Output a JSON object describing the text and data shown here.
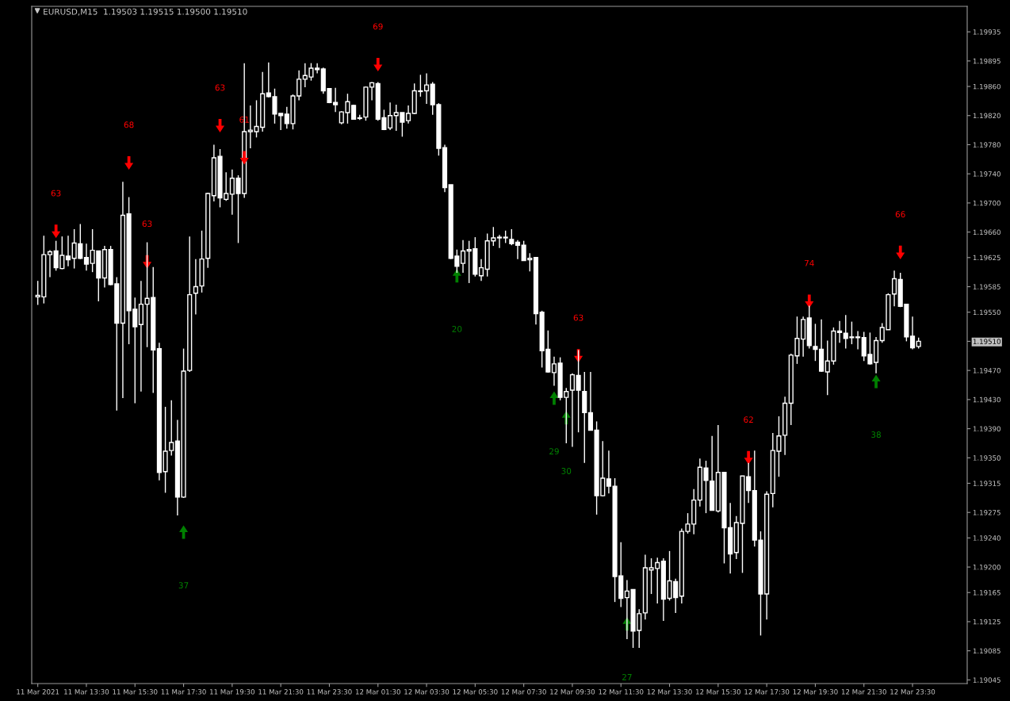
{
  "chart_data": {
    "type": "candlestick",
    "title": "EURUSD,M15  1.19503 1.19515 1.19500 1.19510",
    "x": [
      "2021-03-11T11:30",
      "2021-03-11T11:45",
      "2021-03-11T12:00",
      "2021-03-11T12:15",
      "2021-03-11T12:30",
      "2021-03-11T12:45",
      "2021-03-11T13:00",
      "2021-03-11T13:15",
      "2021-03-11T13:30",
      "2021-03-11T13:45",
      "2021-03-11T14:00",
      "2021-03-11T14:15",
      "2021-03-11T14:30",
      "2021-03-11T14:45",
      "2021-03-11T15:00",
      "2021-03-11T15:15",
      "2021-03-11T15:30",
      "2021-03-11T15:45",
      "2021-03-11T16:00",
      "2021-03-11T16:15",
      "2021-03-11T16:30",
      "2021-03-11T16:45",
      "2021-03-11T17:00",
      "2021-03-11T17:15",
      "2021-03-11T17:30",
      "2021-03-11T17:45",
      "2021-03-11T18:00",
      "2021-03-11T18:15",
      "2021-03-11T18:30",
      "2021-03-11T18:45",
      "2021-03-11T19:00",
      "2021-03-11T19:15",
      "2021-03-11T19:30",
      "2021-03-11T19:45",
      "2021-03-11T20:00",
      "2021-03-11T20:15",
      "2021-03-11T20:30",
      "2021-03-11T20:45",
      "2021-03-11T21:00",
      "2021-03-11T21:15",
      "2021-03-11T21:30",
      "2021-03-11T21:45",
      "2021-03-11T22:00",
      "2021-03-11T22:15",
      "2021-03-11T22:30",
      "2021-03-11T22:45",
      "2021-03-11T23:00",
      "2021-03-11T23:15",
      "2021-03-11T23:30",
      "2021-03-11T23:45",
      "2021-03-12T00:00",
      "2021-03-12T00:15",
      "2021-03-12T00:30",
      "2021-03-12T00:45",
      "2021-03-12T01:00",
      "2021-03-12T01:15",
      "2021-03-12T01:30",
      "2021-03-12T01:45",
      "2021-03-12T02:00",
      "2021-03-12T02:15",
      "2021-03-12T02:30",
      "2021-03-12T02:45",
      "2021-03-12T03:00",
      "2021-03-12T03:15",
      "2021-03-12T03:30",
      "2021-03-12T03:45",
      "2021-03-12T04:00",
      "2021-03-12T04:15",
      "2021-03-12T04:30",
      "2021-03-12T04:45",
      "2021-03-12T05:00",
      "2021-03-12T05:15",
      "2021-03-12T05:30",
      "2021-03-12T05:45",
      "2021-03-12T06:00",
      "2021-03-12T06:15",
      "2021-03-12T06:30",
      "2021-03-12T06:45",
      "2021-03-12T07:00",
      "2021-03-12T07:15",
      "2021-03-12T07:30",
      "2021-03-12T07:45",
      "2021-03-12T08:00",
      "2021-03-12T08:15",
      "2021-03-12T08:30",
      "2021-03-12T08:45",
      "2021-03-12T09:00",
      "2021-03-12T09:15",
      "2021-03-12T09:30",
      "2021-03-12T09:45",
      "2021-03-12T10:00",
      "2021-03-12T10:15",
      "2021-03-12T10:30",
      "2021-03-12T10:45",
      "2021-03-12T11:00",
      "2021-03-12T11:15",
      "2021-03-12T11:30",
      "2021-03-12T11:45",
      "2021-03-12T12:00",
      "2021-03-12T12:15",
      "2021-03-12T12:30",
      "2021-03-12T12:45",
      "2021-03-12T13:00",
      "2021-03-12T13:15",
      "2021-03-12T13:30",
      "2021-03-12T13:45",
      "2021-03-12T14:00",
      "2021-03-12T14:15",
      "2021-03-12T14:30",
      "2021-03-12T14:45",
      "2021-03-12T15:00",
      "2021-03-12T15:15",
      "2021-03-12T15:30",
      "2021-03-12T15:45",
      "2021-03-12T16:00",
      "2021-03-12T16:15",
      "2021-03-12T16:30",
      "2021-03-12T16:45",
      "2021-03-12T17:00",
      "2021-03-12T17:15",
      "2021-03-12T17:30",
      "2021-03-12T17:45",
      "2021-03-12T18:00",
      "2021-03-12T18:15",
      "2021-03-12T18:30",
      "2021-03-12T18:45",
      "2021-03-12T19:00",
      "2021-03-12T19:15",
      "2021-03-12T19:30",
      "2021-03-12T19:45",
      "2021-03-12T20:00",
      "2021-03-12T20:15",
      "2021-03-12T20:30",
      "2021-03-12T20:45",
      "2021-03-12T21:00",
      "2021-03-12T21:15",
      "2021-03-12T21:30",
      "2021-03-12T21:45",
      "2021-03-12T22:00",
      "2021-03-12T22:15",
      "2021-03-12T22:30",
      "2021-03-12T22:45",
      "2021-03-12T23:00",
      "2021-03-12T23:15",
      "2021-03-12T23:30",
      "2021-03-12T23:45"
    ],
    "ohlc": [
      [
        1.19571,
        1.19593,
        1.1956,
        1.19573
      ],
      [
        1.19571,
        1.19655,
        1.19562,
        1.19629
      ],
      [
        1.19629,
        1.19635,
        1.19598,
        1.19633
      ],
      [
        1.19634,
        1.19648,
        1.19607,
        1.19611
      ],
      [
        1.1961,
        1.19654,
        1.19609,
        1.19628
      ],
      [
        1.19627,
        1.19655,
        1.19613,
        1.19622
      ],
      [
        1.19624,
        1.19664,
        1.1961,
        1.19645
      ],
      [
        1.19644,
        1.19671,
        1.19623,
        1.19624
      ],
      [
        1.19625,
        1.19644,
        1.19607,
        1.19616
      ],
      [
        1.19617,
        1.19664,
        1.19605,
        1.19635
      ],
      [
        1.19634,
        1.19634,
        1.19565,
        1.19597
      ],
      [
        1.19597,
        1.19641,
        1.19584,
        1.19636
      ],
      [
        1.19636,
        1.19641,
        1.19587,
        1.19588
      ],
      [
        1.19589,
        1.19598,
        1.19415,
        1.19535
      ],
      [
        1.19535,
        1.19729,
        1.19432,
        1.19683
      ],
      [
        1.19685,
        1.19708,
        1.19506,
        1.19552
      ],
      [
        1.19554,
        1.1957,
        1.19425,
        1.1953
      ],
      [
        1.19533,
        1.19593,
        1.19441,
        1.19561
      ],
      [
        1.19561,
        1.19646,
        1.19502,
        1.19569
      ],
      [
        1.1957,
        1.19612,
        1.19439,
        1.19498
      ],
      [
        1.195,
        1.19508,
        1.19319,
        1.1933
      ],
      [
        1.19331,
        1.1942,
        1.19302,
        1.19359
      ],
      [
        1.1936,
        1.19429,
        1.19353,
        1.19371
      ],
      [
        1.19373,
        1.19402,
        1.19271,
        1.19296
      ],
      [
        1.19296,
        1.195,
        1.19295,
        1.19469
      ],
      [
        1.1947,
        1.19654,
        1.19468,
        1.19574
      ],
      [
        1.19576,
        1.19623,
        1.19547,
        1.19585
      ],
      [
        1.19586,
        1.19662,
        1.19577,
        1.19623
      ],
      [
        1.19624,
        1.19714,
        1.19611,
        1.19713
      ],
      [
        1.1971,
        1.1978,
        1.19702,
        1.19762
      ],
      [
        1.19764,
        1.19774,
        1.19694,
        1.19707
      ],
      [
        1.19705,
        1.19742,
        1.19703,
        1.19713
      ],
      [
        1.19712,
        1.19746,
        1.19684,
        1.19734
      ],
      [
        1.19734,
        1.19738,
        1.19645,
        1.19713
      ],
      [
        1.19713,
        1.19892,
        1.19707,
        1.19798
      ],
      [
        1.19798,
        1.19834,
        1.19775,
        1.198
      ],
      [
        1.19798,
        1.19841,
        1.1979,
        1.19805
      ],
      [
        1.19804,
        1.1988,
        1.19798,
        1.1985
      ],
      [
        1.19851,
        1.19893,
        1.19845,
        1.19846
      ],
      [
        1.19846,
        1.19857,
        1.19809,
        1.19822
      ],
      [
        1.19823,
        1.19823,
        1.198,
        1.1982
      ],
      [
        1.19822,
        1.19832,
        1.19802,
        1.19809
      ],
      [
        1.19809,
        1.19849,
        1.19801,
        1.19847
      ],
      [
        1.19847,
        1.19882,
        1.19841,
        1.1987
      ],
      [
        1.1987,
        1.19892,
        1.19859,
        1.19875
      ],
      [
        1.19873,
        1.19892,
        1.19868,
        1.19885
      ],
      [
        1.19885,
        1.19892,
        1.19878,
        1.19883
      ],
      [
        1.19884,
        1.19886,
        1.1985,
        1.19854
      ],
      [
        1.19857,
        1.19857,
        1.19837,
        1.19838
      ],
      [
        1.19838,
        1.19858,
        1.19825,
        1.19835
      ],
      [
        1.1981,
        1.19826,
        1.19808,
        1.19825
      ],
      [
        1.19824,
        1.1985,
        1.19809,
        1.19839
      ],
      [
        1.19834,
        1.19835,
        1.19815,
        1.19815
      ],
      [
        1.19817,
        1.19821,
        1.19814,
        1.19816
      ],
      [
        1.19818,
        1.1986,
        1.19813,
        1.19859
      ],
      [
        1.19859,
        1.19866,
        1.19841,
        1.19865
      ],
      [
        1.19864,
        1.19866,
        1.19813,
        1.19815
      ],
      [
        1.19817,
        1.19828,
        1.198,
        1.19801
      ],
      [
        1.19803,
        1.19838,
        1.198,
        1.1982
      ],
      [
        1.1982,
        1.19835,
        1.19799,
        1.19824
      ],
      [
        1.19824,
        1.19824,
        1.19791,
        1.19811
      ],
      [
        1.19813,
        1.19834,
        1.19809,
        1.19823
      ],
      [
        1.19823,
        1.19864,
        1.19822,
        1.19854
      ],
      [
        1.19853,
        1.19876,
        1.19846,
        1.19854
      ],
      [
        1.19854,
        1.19878,
        1.19836,
        1.19862
      ],
      [
        1.19863,
        1.19866,
        1.19821,
        1.19835
      ],
      [
        1.19835,
        1.19837,
        1.19765,
        1.19775
      ],
      [
        1.19776,
        1.1978,
        1.19715,
        1.19721
      ],
      [
        1.19725,
        1.19725,
        1.19623,
        1.19624
      ],
      [
        1.19627,
        1.19636,
        1.19604,
        1.19613
      ],
      [
        1.19617,
        1.19649,
        1.19604,
        1.19634
      ],
      [
        1.19634,
        1.19648,
        1.1959,
        1.19636
      ],
      [
        1.19637,
        1.19653,
        1.19599,
        1.19602
      ],
      [
        1.196,
        1.19623,
        1.19593,
        1.19611
      ],
      [
        1.19609,
        1.19658,
        1.19599,
        1.19648
      ],
      [
        1.19648,
        1.19667,
        1.19641,
        1.19652
      ],
      [
        1.19652,
        1.19656,
        1.19638,
        1.19653
      ],
      [
        1.19652,
        1.19662,
        1.19645,
        1.19653
      ],
      [
        1.1965,
        1.19664,
        1.19642,
        1.19644
      ],
      [
        1.19646,
        1.19649,
        1.19623,
        1.19642
      ],
      [
        1.19642,
        1.19648,
        1.19621,
        1.19621
      ],
      [
        1.19622,
        1.19631,
        1.19606,
        1.19624
      ],
      [
        1.19625,
        1.19626,
        1.19533,
        1.19548
      ],
      [
        1.1955,
        1.19552,
        1.19474,
        1.19497
      ],
      [
        1.19499,
        1.19525,
        1.19467,
        1.19468
      ],
      [
        1.19467,
        1.19489,
        1.19449,
        1.19479
      ],
      [
        1.1948,
        1.19488,
        1.19429,
        1.19433
      ],
      [
        1.19433,
        1.19446,
        1.1937,
        1.19441
      ],
      [
        1.19443,
        1.19466,
        1.19365,
        1.19464
      ],
      [
        1.19463,
        1.19498,
        1.19385,
        1.19443
      ],
      [
        1.19441,
        1.19468,
        1.19343,
        1.19412
      ],
      [
        1.19412,
        1.19468,
        1.19388,
        1.19388
      ],
      [
        1.19388,
        1.194,
        1.19272,
        1.19298
      ],
      [
        1.19298,
        1.19373,
        1.19297,
        1.19322
      ],
      [
        1.19321,
        1.1936,
        1.19301,
        1.19311
      ],
      [
        1.19311,
        1.19322,
        1.19152,
        1.19187
      ],
      [
        1.19188,
        1.19234,
        1.19145,
        1.19157
      ],
      [
        1.19158,
        1.19182,
        1.19101,
        1.19167
      ],
      [
        1.19169,
        1.19169,
        1.19089,
        1.19112
      ],
      [
        1.19113,
        1.19142,
        1.19089,
        1.19136
      ],
      [
        1.19137,
        1.19217,
        1.19128,
        1.19199
      ],
      [
        1.19196,
        1.19212,
        1.19163,
        1.19199
      ],
      [
        1.19198,
        1.19213,
        1.1915,
        1.19206
      ],
      [
        1.19208,
        1.19212,
        1.19126,
        1.19156
      ],
      [
        1.19157,
        1.19222,
        1.19154,
        1.19181
      ],
      [
        1.1918,
        1.19184,
        1.19137,
        1.19158
      ],
      [
        1.1916,
        1.19253,
        1.1915,
        1.19249
      ],
      [
        1.19249,
        1.19274,
        1.19246,
        1.19259
      ],
      [
        1.19259,
        1.19307,
        1.19245,
        1.19292
      ],
      [
        1.19292,
        1.19349,
        1.19283,
        1.19337
      ],
      [
        1.19336,
        1.19346,
        1.19274,
        1.19319
      ],
      [
        1.19318,
        1.1938,
        1.19278,
        1.19278
      ],
      [
        1.19277,
        1.19395,
        1.19275,
        1.1933
      ],
      [
        1.1933,
        1.1933,
        1.19205,
        1.19254
      ],
      [
        1.19254,
        1.19288,
        1.19191,
        1.19218
      ],
      [
        1.1922,
        1.1927,
        1.19211,
        1.19261
      ],
      [
        1.1926,
        1.19325,
        1.19192,
        1.19325
      ],
      [
        1.19324,
        1.19343,
        1.19288,
        1.19305
      ],
      [
        1.19305,
        1.1936,
        1.19228,
        1.19237
      ],
      [
        1.19237,
        1.19249,
        1.19106,
        1.19163
      ],
      [
        1.19163,
        1.19304,
        1.19128,
        1.193
      ],
      [
        1.19301,
        1.19384,
        1.19282,
        1.1936
      ],
      [
        1.19359,
        1.19407,
        1.19324,
        1.1938
      ],
      [
        1.19381,
        1.19434,
        1.19354,
        1.19425
      ],
      [
        1.19425,
        1.19493,
        1.19395,
        1.19491
      ],
      [
        1.1949,
        1.19544,
        1.19479,
        1.19514
      ],
      [
        1.19513,
        1.19544,
        1.19489,
        1.1954
      ],
      [
        1.19542,
        1.19559,
        1.195,
        1.19504
      ],
      [
        1.19503,
        1.19534,
        1.19483,
        1.19499
      ],
      [
        1.19499,
        1.1954,
        1.19468,
        1.19469
      ],
      [
        1.19468,
        1.19511,
        1.19436,
        1.19483
      ],
      [
        1.19483,
        1.19529,
        1.19478,
        1.19524
      ],
      [
        1.19524,
        1.19538,
        1.19508,
        1.19522
      ],
      [
        1.19521,
        1.19546,
        1.195,
        1.19514
      ],
      [
        1.19516,
        1.19537,
        1.19506,
        1.19515
      ],
      [
        1.19516,
        1.19524,
        1.19499,
        1.19515
      ],
      [
        1.19515,
        1.19523,
        1.19483,
        1.1949
      ],
      [
        1.19492,
        1.19522,
        1.19478,
        1.19479
      ],
      [
        1.19481,
        1.19516,
        1.19466,
        1.19511
      ],
      [
        1.19511,
        1.19535,
        1.19508,
        1.19529
      ],
      [
        1.19526,
        1.19576,
        1.19526,
        1.19574
      ],
      [
        1.19575,
        1.19607,
        1.19558,
        1.19596
      ],
      [
        1.19595,
        1.19604,
        1.19557,
        1.19558
      ],
      [
        1.19561,
        1.19561,
        1.1951,
        1.19516
      ],
      [
        1.19517,
        1.19544,
        1.19499,
        1.19501
      ],
      [
        1.19503,
        1.19515,
        1.195,
        1.1951
      ]
    ],
    "series": [
      {
        "type": "scatter",
        "color": "#ff0000",
        "x": [
          "2021-03-11T12:15",
          "2021-03-11T15:15",
          "2021-03-11T16:00",
          "2021-03-11T19:00",
          "2021-03-11T20:00",
          "2021-03-12T01:30",
          "2021-03-12T09:45",
          "2021-03-12T16:45",
          "2021-03-12T19:15",
          "2021-03-12T23:00"
        ],
        "values": [
          1.19661,
          1.19755,
          1.19619,
          1.19806,
          1.19762,
          1.1989,
          1.1949,
          1.1935,
          1.19565,
          1.19632
        ]
      },
      {
        "type": "scatter",
        "color": "#008000",
        "x": [
          "2021-03-11T17:30",
          "2021-03-12T04:45",
          "2021-03-12T08:45",
          "2021-03-12T09:15",
          "2021-03-12T11:45",
          "2021-03-12T22:00"
        ],
        "values": [
          1.19248,
          1.196,
          1.19432,
          1.19405,
          1.19122,
          1.19455
        ]
      }
    ],
    "annotations": [
      "63",
      "68",
      "63",
      "63",
      "61",
      "69",
      "63",
      "62",
      "74",
      "66",
      "37",
      "20",
      "29",
      "30",
      "27",
      "38"
    ],
    "xlim": [
      "2021-03-11T11:15",
      "2021-03-13T01:45"
    ],
    "xticks": [
      {
        "value": "2021-03-11T11:30",
        "label": "11 Mar 2021"
      },
      {
        "value": "2021-03-11T13:30",
        "label": "11 Mar 13:30"
      },
      {
        "value": "2021-03-11T15:30",
        "label": "11 Mar 15:30"
      },
      {
        "value": "2021-03-11T17:30",
        "label": "11 Mar 17:30"
      },
      {
        "value": "2021-03-11T19:30",
        "label": "11 Mar 19:30"
      },
      {
        "value": "2021-03-11T21:30",
        "label": "11 Mar 21:30"
      },
      {
        "value": "2021-03-11T23:30",
        "label": "11 Mar 23:30"
      },
      {
        "value": "2021-03-12T01:30",
        "label": "12 Mar 01:30"
      },
      {
        "value": "2021-03-12T03:30",
        "label": "12 Mar 03:30"
      },
      {
        "value": "2021-03-12T05:30",
        "label": "12 Mar 05:30"
      },
      {
        "value": "2021-03-12T07:30",
        "label": "12 Mar 07:30"
      },
      {
        "value": "2021-03-12T09:30",
        "label": "12 Mar 09:30"
      },
      {
        "value": "2021-03-12T11:30",
        "label": "12 Mar 11:30"
      },
      {
        "value": "2021-03-12T13:30",
        "label": "12 Mar 13:30"
      },
      {
        "value": "2021-03-12T15:30",
        "label": "12 Mar 15:30"
      },
      {
        "value": "2021-03-12T17:30",
        "label": "12 Mar 17:30"
      },
      {
        "value": "2021-03-12T19:30",
        "label": "12 Mar 19:30"
      },
      {
        "value": "2021-03-12T21:30",
        "label": "12 Mar 21:30"
      },
      {
        "value": "2021-03-12T23:30",
        "label": "12 Mar 23:30"
      }
    ],
    "ylim": [
      1.1904,
      1.1997
    ],
    "yticks": [
      {
        "value": 1.19935,
        "label": "1.19935"
      },
      {
        "value": 1.19895,
        "label": "1.19895"
      },
      {
        "value": 1.1986,
        "label": "1.19860"
      },
      {
        "value": 1.1982,
        "label": "1.19820"
      },
      {
        "value": 1.1978,
        "label": "1.19780"
      },
      {
        "value": 1.1974,
        "label": "1.19740"
      },
      {
        "value": 1.197,
        "label": "1.19700"
      },
      {
        "value": 1.1966,
        "label": "1.19660"
      },
      {
        "value": 1.19625,
        "label": "1.19625"
      },
      {
        "value": 1.19585,
        "label": "1.19585"
      },
      {
        "value": 1.1955,
        "label": "1.19550"
      },
      {
        "value": 1.1951,
        "label": "1.19510"
      },
      {
        "value": 1.1947,
        "label": "1.19470"
      },
      {
        "value": 1.1943,
        "label": "1.19430"
      },
      {
        "value": 1.1939,
        "label": "1.19390"
      },
      {
        "value": 1.1935,
        "label": "1.19350"
      },
      {
        "value": 1.19315,
        "label": "1.19315"
      },
      {
        "value": 1.19275,
        "label": "1.19275"
      },
      {
        "value": 1.1924,
        "label": "1.19240"
      },
      {
        "value": 1.192,
        "label": "1.19200"
      },
      {
        "value": 1.19165,
        "label": "1.19165"
      },
      {
        "value": 1.19125,
        "label": "1.19125"
      },
      {
        "value": 1.19085,
        "label": "1.19085"
      },
      {
        "value": 1.19045,
        "label": "1.19045"
      }
    ]
  }
}
